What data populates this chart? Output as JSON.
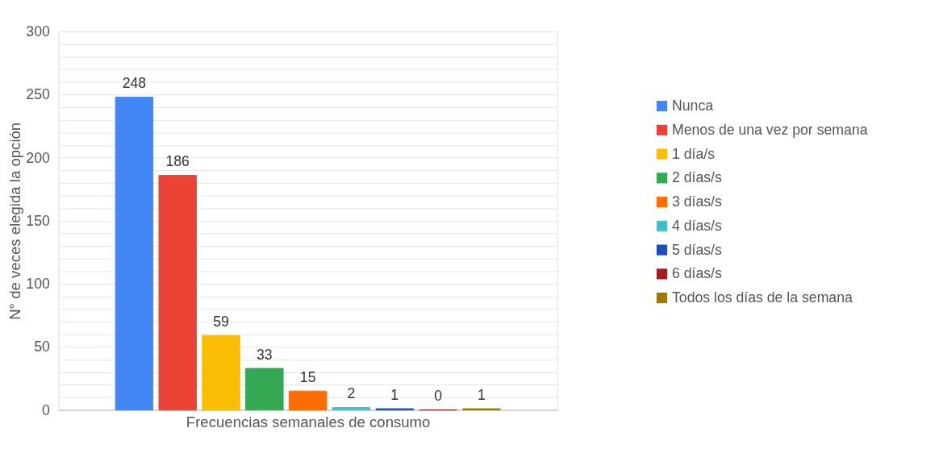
{
  "chart_data": {
    "type": "bar",
    "categories": [
      null
    ],
    "xlabel": "Frecuencias semanales de consumo",
    "ylabel": "N° de veces elegida la opción",
    "ylim": [
      0,
      300
    ],
    "yticks": [
      0,
      {
        "value": 10,
        "label": null
      },
      {
        "value": 20,
        "label": null
      },
      {
        "value": 30,
        "label": null
      },
      {
        "value": 40,
        "label": null
      },
      50,
      {
        "value": 60,
        "label": null
      },
      {
        "value": 70,
        "label": null
      },
      {
        "value": 80,
        "label": null
      },
      {
        "value": 90,
        "label": null
      },
      100,
      {
        "value": 110,
        "label": null
      },
      {
        "value": 120,
        "label": null
      },
      {
        "value": 130,
        "label": null
      },
      {
        "value": 140,
        "label": null
      },
      150,
      {
        "value": 160,
        "label": null
      },
      {
        "value": 170,
        "label": null
      },
      {
        "value": 180,
        "label": null
      },
      {
        "value": 190,
        "label": null
      },
      200,
      {
        "value": 210,
        "label": null
      },
      {
        "value": 220,
        "label": null
      },
      {
        "value": 230,
        "label": null
      },
      {
        "value": 240,
        "label": null
      },
      250,
      {
        "value": 260,
        "label": null
      },
      {
        "value": 270,
        "label": null
      },
      {
        "value": 280,
        "label": null
      },
      {
        "value": 290,
        "label": null
      },
      300
    ],
    "series": [
      {
        "name": "Nunca",
        "color": "#4285f4",
        "values": [
          248
        ]
      },
      {
        "name": "Menos de una vez por semana",
        "color": "#ea4335",
        "values": [
          186
        ]
      },
      {
        "name": "1 día/s",
        "color": "#fbbc04",
        "values": [
          59
        ]
      },
      {
        "name": "2 días/s",
        "color": "#34a853",
        "values": [
          33
        ]
      },
      {
        "name": "3 días/s",
        "color": "#ff6d01",
        "values": [
          15
        ]
      },
      {
        "name": "4 días/s",
        "color": "#46bdc6",
        "values": [
          2
        ]
      },
      {
        "name": "5 días/s",
        "color": "#1a4fb8",
        "values": [
          1
        ]
      },
      {
        "name": "6 días/s",
        "color": "#a61c1c",
        "values": [
          0
        ]
      },
      {
        "name": "Todos los días de la semana",
        "color": "#9c7a00",
        "values": [
          1
        ]
      }
    ],
    "data_labels": true,
    "grid": "y",
    "legend": "right"
  }
}
